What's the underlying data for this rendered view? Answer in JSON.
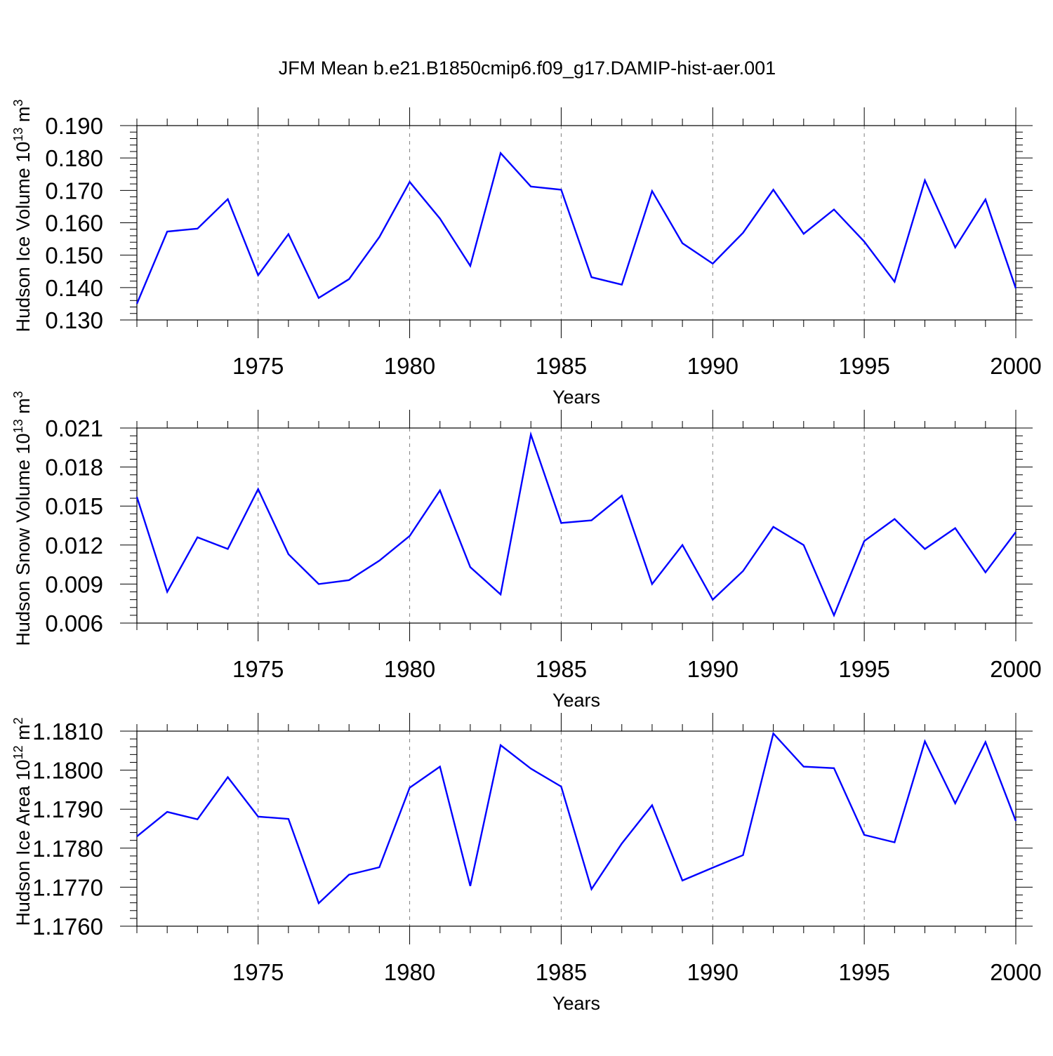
{
  "figure_title": "JFM Mean b.e21.B1850cmip6.f09_g17.DAMIP-hist-aer.001",
  "colors": {
    "line": "#0000ff",
    "axis": "#000000",
    "grid": "#808080"
  },
  "chart_data": [
    {
      "type": "line",
      "title": "",
      "xlabel": "Years",
      "ylabel_text": "Hudson Ice Volume 10",
      "ylabel_exp": "13",
      "ylabel_unit": " m",
      "ylabel_unit_exp": "3",
      "xlim": [
        1971,
        2000
      ],
      "ylim": [
        0.13,
        0.19
      ],
      "yticks": [
        0.13,
        0.14,
        0.15,
        0.16,
        0.17,
        0.18,
        0.19
      ],
      "ytick_labels": [
        "0.130",
        "0.140",
        "0.150",
        "0.160",
        "0.170",
        "0.180",
        "0.190"
      ],
      "xticks": [
        1975,
        1980,
        1985,
        1990,
        1995,
        2000
      ],
      "xtick_labels": [
        "1975",
        "1980",
        "1985",
        "1990",
        "1995",
        "2000"
      ],
      "grid": "vertical dashed at major x ticks",
      "series": [
        {
          "name": "Hudson Ice Volume",
          "x": [
            1971,
            1972,
            1973,
            1974,
            1975,
            1976,
            1977,
            1978,
            1979,
            1980,
            1981,
            1982,
            1983,
            1984,
            1985,
            1986,
            1987,
            1988,
            1989,
            1990,
            1991,
            1992,
            1993,
            1994,
            1995,
            1996,
            1997,
            1998,
            1999,
            2000
          ],
          "values": [
            0.135,
            0.1573,
            0.1582,
            0.1673,
            0.1438,
            0.1565,
            0.1368,
            0.1426,
            0.1556,
            0.1726,
            0.1613,
            0.1467,
            0.1815,
            0.1712,
            0.1702,
            0.1432,
            0.1409,
            0.1698,
            0.1537,
            0.1474,
            0.1569,
            0.1702,
            0.1566,
            0.1641,
            0.1542,
            0.1418,
            0.1731,
            0.1524,
            0.1672,
            0.1398
          ]
        }
      ]
    },
    {
      "type": "line",
      "title": "",
      "xlabel": "Years",
      "ylabel_text": "Hudson Snow Volume 10",
      "ylabel_exp": "13",
      "ylabel_unit": " m",
      "ylabel_unit_exp": "3",
      "xlim": [
        1971,
        2000
      ],
      "ylim": [
        0.006,
        0.021
      ],
      "yticks": [
        0.006,
        0.009,
        0.012,
        0.015,
        0.018,
        0.021
      ],
      "ytick_labels": [
        "0.006",
        "0.009",
        "0.012",
        "0.015",
        "0.018",
        "0.021"
      ],
      "xticks": [
        1975,
        1980,
        1985,
        1990,
        1995,
        2000
      ],
      "xtick_labels": [
        "1975",
        "1980",
        "1985",
        "1990",
        "1995",
        "2000"
      ],
      "grid": "vertical dashed at major x ticks",
      "series": [
        {
          "name": "Hudson Snow Volume",
          "x": [
            1971,
            1972,
            1973,
            1974,
            1975,
            1976,
            1977,
            1978,
            1979,
            1980,
            1981,
            1982,
            1983,
            1984,
            1985,
            1986,
            1987,
            1988,
            1989,
            1990,
            1991,
            1992,
            1993,
            1994,
            1995,
            1996,
            1997,
            1998,
            1999,
            2000
          ],
          "values": [
            0.0157,
            0.0084,
            0.0126,
            0.0117,
            0.0163,
            0.0113,
            0.009,
            0.0093,
            0.0108,
            0.0127,
            0.0162,
            0.0103,
            0.0082,
            0.0205,
            0.0137,
            0.0139,
            0.0158,
            0.009,
            0.012,
            0.0078,
            0.01,
            0.0134,
            0.012,
            0.0066,
            0.0123,
            0.014,
            0.0117,
            0.0133,
            0.0099,
            0.013
          ]
        }
      ]
    },
    {
      "type": "line",
      "title": "",
      "xlabel": "Years",
      "ylabel_text": "Hudson Ice Area 10",
      "ylabel_exp": "12",
      "ylabel_unit": " m",
      "ylabel_unit_exp": "2",
      "xlim": [
        1971,
        2000
      ],
      "ylim": [
        1.176,
        1.181
      ],
      "yticks": [
        1.176,
        1.177,
        1.178,
        1.179,
        1.18,
        1.181
      ],
      "ytick_labels": [
        "1.1760",
        "1.1770",
        "1.1780",
        "1.1790",
        "1.1800",
        "1.1810"
      ],
      "xticks": [
        1975,
        1980,
        1985,
        1990,
        1995,
        2000
      ],
      "xtick_labels": [
        "1975",
        "1980",
        "1985",
        "1990",
        "1995",
        "2000"
      ],
      "grid": "vertical dashed at major x ticks",
      "series": [
        {
          "name": "Hudson Ice Area",
          "x": [
            1971,
            1972,
            1973,
            1974,
            1975,
            1976,
            1977,
            1978,
            1979,
            1980,
            1981,
            1982,
            1983,
            1984,
            1985,
            1986,
            1987,
            1988,
            1989,
            1990,
            1991,
            1992,
            1993,
            1994,
            1995,
            1996,
            1997,
            1998,
            1999,
            2000
          ],
          "values": [
            1.1783,
            1.17893,
            1.17874,
            1.17982,
            1.17881,
            1.17875,
            1.17659,
            1.17732,
            1.17751,
            1.17955,
            1.18009,
            1.17703,
            1.18064,
            1.18004,
            1.17958,
            1.17695,
            1.17812,
            1.1791,
            1.17717,
            1.1775,
            1.17782,
            1.18094,
            1.18009,
            1.18005,
            1.17834,
            1.17815,
            1.18074,
            1.17915,
            1.18072,
            1.1787
          ]
        }
      ]
    }
  ]
}
